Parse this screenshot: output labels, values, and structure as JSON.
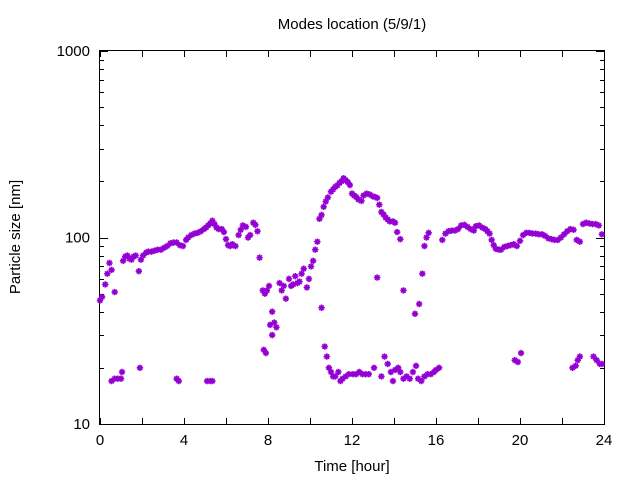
{
  "chart_data": {
    "type": "scatter",
    "title": "Modes location (5/9/1)",
    "xlabel": "Time [hour]",
    "ylabel": "Particle size [nm]",
    "xlim": [
      0,
      24
    ],
    "ylim": [
      10,
      1000
    ],
    "yscale": "log",
    "x_ticks": [
      0,
      4,
      8,
      12,
      16,
      20,
      24
    ],
    "x_tick_labels": [
      "0",
      "4",
      "8",
      "12",
      "16",
      "20",
      "24"
    ],
    "y_ticks": [
      10,
      100,
      1000
    ],
    "y_tick_labels": [
      "10",
      "100",
      "1000"
    ],
    "grid": false,
    "legend": "none",
    "marker": "asterisk",
    "color": "#9400d3",
    "series": [
      {
        "points": [
          [
            0.0,
            46
          ],
          [
            0.1,
            48
          ],
          [
            0.25,
            56
          ],
          [
            0.35,
            64
          ],
          [
            0.45,
            73
          ],
          [
            0.55,
            67
          ],
          [
            0.7,
            51
          ],
          [
            1.1,
            75
          ],
          [
            1.2,
            79
          ],
          [
            1.3,
            80
          ],
          [
            1.4,
            77
          ],
          [
            1.5,
            76
          ],
          [
            1.6,
            79
          ],
          [
            1.7,
            80
          ],
          [
            1.85,
            66
          ],
          [
            1.95,
            76
          ],
          [
            2.05,
            80
          ],
          [
            2.2,
            83
          ],
          [
            2.3,
            84
          ],
          [
            2.45,
            84
          ],
          [
            2.6,
            85
          ],
          [
            2.75,
            86
          ],
          [
            2.9,
            86
          ],
          [
            3.05,
            88
          ],
          [
            3.2,
            90
          ],
          [
            3.35,
            93
          ],
          [
            3.5,
            94
          ],
          [
            3.65,
            94
          ],
          [
            3.8,
            91
          ],
          [
            3.95,
            90
          ],
          [
            4.1,
            97
          ],
          [
            4.2,
            100
          ],
          [
            4.35,
            103
          ],
          [
            4.5,
            105
          ],
          [
            4.65,
            106
          ],
          [
            4.8,
            108
          ],
          [
            4.95,
            111
          ],
          [
            5.05,
            113
          ],
          [
            5.15,
            116
          ],
          [
            5.25,
            119
          ],
          [
            5.35,
            123
          ],
          [
            5.45,
            118
          ],
          [
            5.55,
            113
          ],
          [
            5.65,
            111
          ],
          [
            5.8,
            111
          ],
          [
            5.9,
            107
          ],
          [
            6.0,
            98
          ],
          [
            6.1,
            91
          ],
          [
            6.2,
            90
          ],
          [
            6.3,
            92
          ],
          [
            6.45,
            90
          ],
          [
            6.6,
            103
          ],
          [
            6.7,
            110
          ],
          [
            6.8,
            116
          ],
          [
            6.95,
            114
          ],
          [
            7.05,
            100
          ],
          [
            7.15,
            103
          ],
          [
            7.3,
            120
          ],
          [
            7.4,
            117
          ],
          [
            7.5,
            108
          ],
          [
            7.6,
            78
          ],
          [
            7.75,
            52
          ],
          [
            7.85,
            50
          ],
          [
            7.95,
            52
          ],
          [
            8.05,
            55
          ],
          [
            8.2,
            40
          ],
          [
            8.3,
            35
          ],
          [
            8.4,
            33
          ],
          [
            8.55,
            57
          ],
          [
            8.65,
            52
          ],
          [
            8.75,
            55
          ],
          [
            8.85,
            47
          ],
          [
            9.0,
            60
          ],
          [
            9.1,
            55
          ],
          [
            9.2,
            56
          ],
          [
            9.3,
            62
          ],
          [
            9.4,
            57
          ],
          [
            9.5,
            58
          ],
          [
            9.6,
            64
          ],
          [
            9.7,
            68
          ],
          [
            9.85,
            54
          ],
          [
            9.95,
            60
          ],
          [
            10.05,
            70
          ],
          [
            10.15,
            75
          ],
          [
            10.25,
            86
          ],
          [
            10.35,
            95
          ],
          [
            10.45,
            126
          ],
          [
            10.55,
            132
          ],
          [
            10.65,
            146
          ],
          [
            10.75,
            156
          ],
          [
            10.85,
            164
          ],
          [
            11.0,
            176
          ],
          [
            11.1,
            181
          ],
          [
            11.2,
            187
          ],
          [
            11.3,
            190
          ],
          [
            11.4,
            196
          ],
          [
            11.5,
            200
          ],
          [
            11.6,
            208
          ],
          [
            11.7,
            203
          ],
          [
            11.8,
            198
          ],
          [
            11.9,
            191
          ],
          [
            12.0,
            172
          ],
          [
            12.1,
            168
          ],
          [
            12.2,
            165
          ],
          [
            12.3,
            160
          ],
          [
            12.45,
            157
          ],
          [
            12.55,
            168
          ],
          [
            12.7,
            172
          ],
          [
            12.85,
            170
          ],
          [
            13.0,
            166
          ],
          [
            13.1,
            165
          ],
          [
            13.2,
            163
          ],
          [
            13.3,
            150
          ],
          [
            13.4,
            137
          ],
          [
            13.5,
            133
          ],
          [
            13.6,
            128
          ],
          [
            13.7,
            125
          ],
          [
            13.8,
            122
          ],
          [
            13.95,
            122
          ],
          [
            14.05,
            120
          ],
          [
            14.15,
            107
          ],
          [
            14.3,
            98
          ],
          [
            14.45,
            52
          ],
          [
            15.0,
            39
          ],
          [
            15.2,
            44
          ],
          [
            15.35,
            64
          ],
          [
            15.45,
            90
          ],
          [
            15.55,
            100
          ],
          [
            15.65,
            106
          ],
          [
            16.3,
            97
          ],
          [
            16.45,
            105
          ],
          [
            16.6,
            108
          ],
          [
            16.75,
            109
          ],
          [
            16.9,
            109
          ],
          [
            17.05,
            111
          ],
          [
            17.2,
            116
          ],
          [
            17.35,
            117
          ],
          [
            17.5,
            114
          ],
          [
            17.65,
            111
          ],
          [
            17.8,
            109
          ],
          [
            17.9,
            115
          ],
          [
            18.05,
            116
          ],
          [
            18.2,
            113
          ],
          [
            18.35,
            111
          ],
          [
            18.45,
            108
          ],
          [
            18.55,
            105
          ],
          [
            18.65,
            97
          ],
          [
            18.75,
            91
          ],
          [
            18.85,
            87
          ],
          [
            19.0,
            86
          ],
          [
            19.1,
            86
          ],
          [
            19.25,
            89
          ],
          [
            19.4,
            90
          ],
          [
            19.55,
            91
          ],
          [
            19.7,
            92
          ],
          [
            19.85,
            90
          ],
          [
            20.0,
            96
          ],
          [
            20.15,
            103
          ],
          [
            20.3,
            106
          ],
          [
            20.45,
            106
          ],
          [
            20.6,
            105
          ],
          [
            20.75,
            105
          ],
          [
            20.9,
            104
          ],
          [
            21.05,
            104
          ],
          [
            21.2,
            102
          ],
          [
            21.35,
            99
          ],
          [
            21.5,
            98
          ],
          [
            21.65,
            97
          ],
          [
            21.8,
            97
          ],
          [
            21.95,
            100
          ],
          [
            22.1,
            104
          ],
          [
            22.25,
            108
          ],
          [
            22.4,
            111
          ],
          [
            22.55,
            110
          ],
          [
            22.7,
            97
          ],
          [
            22.85,
            95
          ],
          [
            23.0,
            118
          ],
          [
            23.15,
            120
          ],
          [
            23.3,
            119
          ],
          [
            23.45,
            118
          ],
          [
            23.6,
            118
          ],
          [
            23.75,
            116
          ],
          [
            23.9,
            104
          ],
          [
            0.55,
            17
          ],
          [
            0.7,
            17.5
          ],
          [
            0.85,
            17.5
          ],
          [
            1.0,
            17.5
          ],
          [
            1.05,
            19
          ],
          [
            1.9,
            20
          ],
          [
            3.65,
            17.5
          ],
          [
            3.75,
            17
          ],
          [
            5.1,
            17
          ],
          [
            5.25,
            17
          ],
          [
            5.35,
            17
          ],
          [
            7.8,
            25
          ],
          [
            7.9,
            24
          ],
          [
            8.1,
            34
          ],
          [
            8.2,
            30
          ],
          [
            10.55,
            42
          ],
          [
            10.7,
            26
          ],
          [
            10.8,
            23
          ],
          [
            10.9,
            20
          ],
          [
            11.0,
            19
          ],
          [
            11.1,
            18
          ],
          [
            11.2,
            18
          ],
          [
            11.35,
            19
          ],
          [
            11.45,
            17
          ],
          [
            11.55,
            17.5
          ],
          [
            11.7,
            18
          ],
          [
            11.85,
            18.5
          ],
          [
            12.05,
            18.5
          ],
          [
            12.2,
            18.5
          ],
          [
            12.35,
            19
          ],
          [
            12.5,
            18.5
          ],
          [
            12.65,
            18.5
          ],
          [
            12.8,
            18.5
          ],
          [
            13.05,
            20
          ],
          [
            13.2,
            61
          ],
          [
            13.4,
            18
          ],
          [
            13.55,
            23
          ],
          [
            13.7,
            21
          ],
          [
            13.85,
            19
          ],
          [
            13.95,
            17
          ],
          [
            14.05,
            19.5
          ],
          [
            14.2,
            20
          ],
          [
            14.3,
            19
          ],
          [
            14.45,
            17.5
          ],
          [
            14.6,
            18
          ],
          [
            14.75,
            17.5
          ],
          [
            14.9,
            19
          ],
          [
            15.05,
            20.5
          ],
          [
            15.15,
            17.5
          ],
          [
            15.3,
            17
          ],
          [
            15.45,
            18
          ],
          [
            15.6,
            18.5
          ],
          [
            15.75,
            18.5
          ],
          [
            15.9,
            19
          ],
          [
            16.0,
            19.5
          ],
          [
            16.15,
            20
          ],
          [
            19.75,
            22
          ],
          [
            19.9,
            21.5
          ],
          [
            20.05,
            24
          ],
          [
            22.5,
            20
          ],
          [
            22.65,
            20.5
          ],
          [
            22.75,
            22
          ],
          [
            22.85,
            23
          ],
          [
            23.5,
            23
          ],
          [
            23.65,
            22
          ],
          [
            23.8,
            21
          ],
          [
            23.9,
            21
          ]
        ]
      }
    ]
  }
}
